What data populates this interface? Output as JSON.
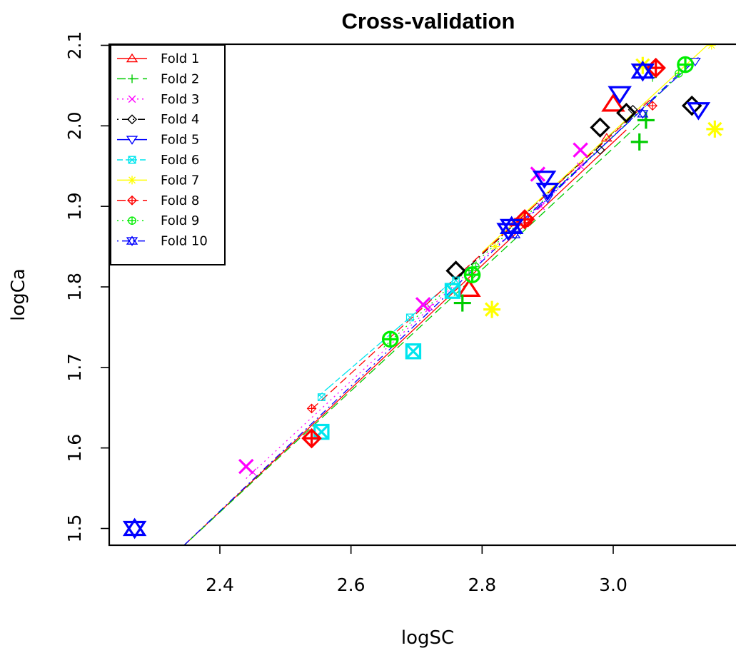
{
  "chart_data": {
    "type": "scatter",
    "title": "Cross-validation",
    "xlabel": "logSC",
    "ylabel": "logCa",
    "xlim": [
      2.26,
      3.16
    ],
    "ylim": [
      1.48,
      2.1
    ],
    "x_ticks": [
      "2.4",
      "2.6",
      "2.8",
      "3.0"
    ],
    "x_tick_values": [
      2.4,
      2.6,
      2.8,
      3.0
    ],
    "y_ticks": [
      "1.5",
      "1.6",
      "1.7",
      "1.8",
      "1.9",
      "2.0",
      "2.1"
    ],
    "y_tick_values": [
      1.5,
      1.6,
      1.7,
      1.8,
      1.9,
      2.0,
      2.1
    ],
    "grid": false,
    "legend_position": "top-left",
    "series": [
      {
        "name": "Fold 1",
        "color": "#ff0000",
        "pch": "triangle-up",
        "lty": "solid",
        "fit": [
          [
            2.34,
            1.475
          ],
          [
            3.02,
            1.995
          ]
        ],
        "test": [
          [
            3.0,
            2.027
          ],
          [
            2.78,
            1.797
          ]
        ],
        "train": [
          [
            2.99,
            1.985
          ],
          [
            2.85,
            1.88
          ]
        ]
      },
      {
        "name": "Fold 2",
        "color": "#00cc00",
        "pch": "plus",
        "lty": "dashed",
        "fit": [
          [
            2.34,
            1.475
          ],
          [
            3.05,
            2.01
          ]
        ],
        "test": [
          [
            3.04,
            1.98
          ],
          [
            2.77,
            1.78
          ],
          [
            3.05,
            2.007
          ]
        ],
        "train": [
          [
            3.06,
            2.06
          ],
          [
            2.78,
            1.82
          ]
        ]
      },
      {
        "name": "Fold 3",
        "color": "#ff00ff",
        "pch": "cross",
        "lty": "dotted",
        "fit": [
          [
            2.44,
            1.562
          ],
          [
            2.96,
            1.955
          ]
        ],
        "test": [
          [
            2.95,
            1.97
          ],
          [
            2.71,
            1.778
          ],
          [
            2.885,
            1.94
          ],
          [
            2.44,
            1.577
          ]
        ],
        "train": [
          [
            2.45,
            1.57
          ],
          [
            2.95,
            1.95
          ],
          [
            2.72,
            1.775
          ],
          [
            2.89,
            1.9
          ]
        ]
      },
      {
        "name": "Fold 4",
        "color": "#000000",
        "pch": "diamond",
        "lty": "dotdash",
        "fit": [
          [
            2.76,
            1.81
          ],
          [
            3.05,
            2.03
          ]
        ],
        "test": [
          [
            2.98,
            1.998
          ],
          [
            3.02,
            2.016
          ],
          [
            3.12,
            2.025
          ],
          [
            2.76,
            1.82
          ]
        ],
        "train": [
          [
            2.98,
            1.97
          ],
          [
            3.03,
            2.02
          ]
        ]
      },
      {
        "name": "Fold 5",
        "color": "#0000ff",
        "pch": "triangle-down",
        "lty": "longdash",
        "fit": [
          [
            2.84,
            1.866
          ],
          [
            3.13,
            2.085
          ]
        ],
        "test": [
          [
            2.895,
            1.935
          ],
          [
            3.01,
            2.04
          ],
          [
            2.9,
            1.92
          ],
          [
            3.13,
            2.02
          ],
          [
            2.84,
            1.87
          ]
        ],
        "train": [
          [
            3.125,
            2.08
          ],
          [
            2.9,
            1.91
          ]
        ]
      },
      {
        "name": "Fold 6",
        "color": "#00e5ee",
        "pch": "square-x",
        "lty": "twodash",
        "fit": [
          [
            2.55,
            1.664
          ],
          [
            2.78,
            1.825
          ]
        ],
        "test": [
          [
            2.555,
            1.62
          ],
          [
            2.695,
            1.72
          ],
          [
            2.755,
            1.795
          ]
        ],
        "train": [
          [
            2.555,
            1.663
          ],
          [
            2.69,
            1.762
          ],
          [
            2.76,
            1.808
          ]
        ]
      },
      {
        "name": "Fold 7",
        "color": "#ffff00",
        "pch": "asterisk",
        "lty": "solid",
        "fit": [
          [
            2.8,
            1.843
          ],
          [
            3.15,
            2.105
          ]
        ],
        "test": [
          [
            3.045,
            2.075
          ],
          [
            2.815,
            1.772
          ],
          [
            3.155,
            1.996
          ]
        ],
        "train": [
          [
            2.82,
            1.85
          ],
          [
            3.15,
            2.1
          ]
        ]
      },
      {
        "name": "Fold 8",
        "color": "#ff0000",
        "pch": "diamond-plus",
        "lty": "dashed",
        "fit": [
          [
            2.54,
            1.648
          ],
          [
            3.06,
            2.035
          ]
        ],
        "test": [
          [
            3.065,
            2.072
          ],
          [
            2.54,
            1.612
          ],
          [
            2.865,
            1.884
          ]
        ],
        "train": [
          [
            2.54,
            1.649
          ],
          [
            3.06,
            2.025
          ],
          [
            2.87,
            1.88
          ]
        ]
      },
      {
        "name": "Fold 9",
        "color": "#00ee00",
        "pch": "circle-plus",
        "lty": "dotted",
        "fit": [
          [
            2.65,
            1.725
          ],
          [
            3.11,
            2.07
          ]
        ],
        "test": [
          [
            3.11,
            2.076
          ],
          [
            2.785,
            1.815
          ],
          [
            2.66,
            1.735
          ]
        ],
        "train": [
          [
            3.1,
            2.065
          ],
          [
            2.79,
            1.825
          ]
        ]
      },
      {
        "name": "Fold 10",
        "color": "#0000ff",
        "pch": "star-david",
        "lty": "dotdash",
        "fit": [
          [
            2.34,
            1.475
          ],
          [
            3.12,
            2.08
          ]
        ],
        "test": [
          [
            2.27,
            1.5
          ],
          [
            3.045,
            2.068
          ],
          [
            2.845,
            1.875
          ]
        ],
        "train": [
          [
            3.045,
            2.015
          ],
          [
            2.85,
            1.865
          ]
        ]
      }
    ]
  }
}
